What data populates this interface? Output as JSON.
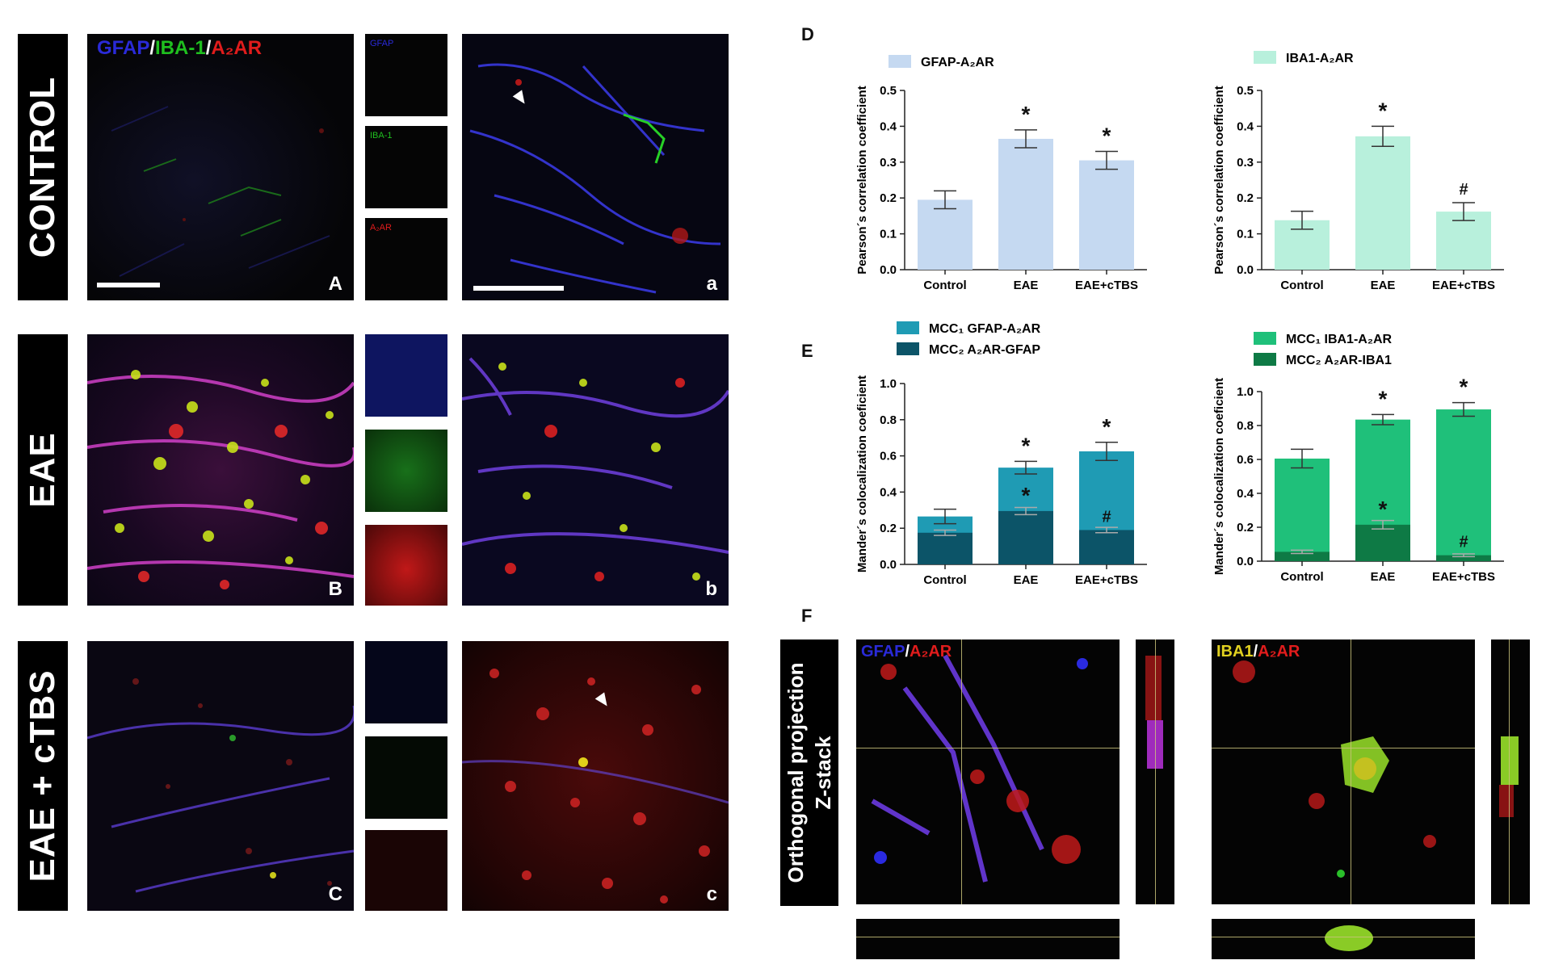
{
  "rows": [
    {
      "label": "CONTROL",
      "letter": "A",
      "zoom_letter": "a"
    },
    {
      "label": "EAE",
      "letter": "B",
      "zoom_letter": "b"
    },
    {
      "label": "EAE + cTBS",
      "letter": "C",
      "zoom_letter": "c"
    }
  ],
  "channel_title": {
    "gfap": "GFAP",
    "sep1": "/",
    "iba": "IBA-1",
    "sep2": "/",
    "a2a": "A₂AR"
  },
  "inset_labels": {
    "gfap": "GFAP",
    "iba": "IBA-1",
    "a2a": "A₂AR"
  },
  "colors": {
    "gfap": "#2a2ad8",
    "iba": "#1fbf1f",
    "a2a": "#e01c1c",
    "gfap_bar": "#c5d9f1",
    "iba_bar": "#b8f0dc",
    "mcc1_gfap": "#1f9bb4",
    "mcc2_gfap": "#0c5468",
    "mcc1_iba": "#1fc07a",
    "mcc2_iba": "#0e7a45"
  },
  "panel_letters": {
    "D": "D",
    "E": "E",
    "F": "F"
  },
  "chart_data": [
    {
      "id": "D-left",
      "type": "bar",
      "categories": [
        "Control",
        "EAE",
        "EAE+cTBS"
      ],
      "values": [
        0.195,
        0.365,
        0.305
      ],
      "errors": [
        0.025,
        0.025,
        0.025
      ],
      "annotations": [
        "",
        "*",
        "*"
      ],
      "legend": "GFAP-A₂AR",
      "ylabel": "Pearson´s correlation coefficient",
      "ylim": [
        0,
        0.5
      ],
      "yticks": [
        "0.0",
        "0.1",
        "0.2",
        "0.3",
        "0.4",
        "0.5"
      ],
      "ystep": 0.1
    },
    {
      "id": "D-right",
      "type": "bar",
      "categories": [
        "Control",
        "EAE",
        "EAE+cTBS"
      ],
      "values": [
        0.138,
        0.372,
        0.162
      ],
      "errors": [
        0.025,
        0.028,
        0.025
      ],
      "annotations": [
        "",
        "*",
        "#"
      ],
      "legend": "IBA1-A₂AR",
      "ylabel": "Pearson´s correlation coefficient",
      "ylim": [
        0,
        0.5
      ],
      "yticks": [
        "0.0",
        "0.1",
        "0.2",
        "0.3",
        "0.4",
        "0.5"
      ],
      "ystep": 0.1
    },
    {
      "id": "E-left",
      "type": "bar",
      "categories": [
        "Control",
        "EAE",
        "EAE+cTBS"
      ],
      "series": [
        {
          "name": "MCC₁ GFAP-A₂AR",
          "values": [
            0.265,
            0.535,
            0.625
          ],
          "errors": [
            0.04,
            0.035,
            0.05
          ],
          "annotations": [
            "",
            "*",
            "*"
          ]
        },
        {
          "name": "MCC₂ A₂AR-GFAP",
          "values": [
            0.175,
            0.295,
            0.19
          ],
          "errors": [
            0.015,
            0.02,
            0.015
          ],
          "annotations": [
            "",
            "*",
            "#"
          ]
        }
      ],
      "ylabel": "Mander´s colocalization coeficient",
      "ylim": [
        0,
        1.0
      ],
      "yticks": [
        "0.0",
        "0.2",
        "0.4",
        "0.6",
        "0.8",
        "1.0"
      ],
      "ystep": 0.2
    },
    {
      "id": "E-right",
      "type": "bar",
      "categories": [
        "Control",
        "EAE",
        "EAE+cTBS"
      ],
      "series": [
        {
          "name": "MCC₁ IBA1-A₂AR",
          "values": [
            0.605,
            0.835,
            0.895
          ],
          "errors": [
            0.055,
            0.03,
            0.04
          ],
          "annotations": [
            "",
            "*",
            "*"
          ]
        },
        {
          "name": "MCC₂ A₂AR-IBA1",
          "values": [
            0.055,
            0.215,
            0.035
          ],
          "errors": [
            0.01,
            0.025,
            0.008
          ],
          "annotations": [
            "",
            "*",
            "#"
          ]
        }
      ],
      "ylabel": "Mander´s colocalization coeficient",
      "ylim": [
        0,
        1.0
      ],
      "yticks": [
        "0.0",
        "0.2",
        "0.4",
        "0.6",
        "0.8",
        "1.0"
      ],
      "ystep": 0.2
    }
  ],
  "ortho": {
    "label_line1": "Orthogonal projection",
    "label_line2": "Z-stack",
    "left_title": {
      "a": "GFAP",
      "sep": "/",
      "b": "A₂AR"
    },
    "right_title": {
      "a": "IBA1",
      "sep": "/",
      "b": "A₂AR"
    }
  }
}
